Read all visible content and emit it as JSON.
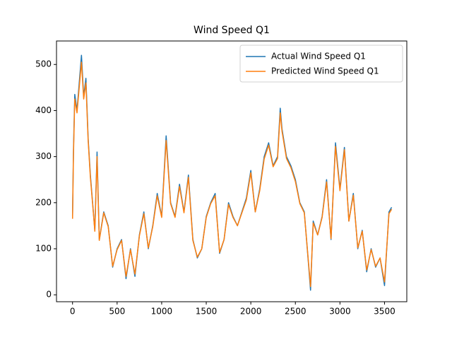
{
  "chart_data": {
    "type": "line",
    "title": "Wind Speed Q1",
    "x": [
      0,
      10,
      25,
      50,
      75,
      100,
      125,
      150,
      175,
      200,
      225,
      250,
      275,
      300,
      350,
      400,
      450,
      500,
      550,
      600,
      650,
      700,
      750,
      800,
      850,
      900,
      950,
      1000,
      1050,
      1100,
      1150,
      1200,
      1250,
      1300,
      1350,
      1400,
      1450,
      1500,
      1550,
      1600,
      1650,
      1700,
      1750,
      1800,
      1850,
      1900,
      1950,
      2000,
      2050,
      2100,
      2150,
      2200,
      2250,
      2300,
      2330,
      2350,
      2400,
      2450,
      2500,
      2550,
      2600,
      2650,
      2670,
      2700,
      2750,
      2800,
      2850,
      2900,
      2950,
      3000,
      3050,
      3100,
      3150,
      3200,
      3250,
      3300,
      3350,
      3400,
      3450,
      3500,
      3550,
      3580
    ],
    "series": [
      {
        "name": "Actual Wind Speed Q1",
        "color": "#1f77b4",
        "values": [
          170,
          310,
          435,
          400,
          460,
          520,
          430,
          470,
          340,
          260,
          200,
          140,
          310,
          120,
          180,
          150,
          60,
          100,
          120,
          35,
          100,
          40,
          130,
          180,
          100,
          150,
          220,
          170,
          345,
          200,
          170,
          240,
          180,
          260,
          120,
          80,
          100,
          170,
          200,
          220,
          90,
          120,
          200,
          170,
          150,
          180,
          210,
          270,
          180,
          230,
          300,
          330,
          280,
          300,
          405,
          360,
          300,
          280,
          250,
          200,
          180,
          60,
          10,
          160,
          130,
          170,
          250,
          120,
          330,
          230,
          320,
          160,
          220,
          100,
          140,
          50,
          100,
          60,
          80,
          20,
          180,
          190
        ]
      },
      {
        "name": "Predicted Wind Speed Q1",
        "color": "#ff7f0e",
        "values": [
          165,
          300,
          425,
          395,
          450,
          505,
          425,
          460,
          335,
          255,
          198,
          138,
          300,
          118,
          178,
          148,
          62,
          98,
          118,
          40,
          98,
          45,
          128,
          176,
          102,
          148,
          215,
          168,
          335,
          198,
          168,
          235,
          178,
          255,
          118,
          82,
          100,
          168,
          198,
          215,
          92,
          120,
          196,
          168,
          150,
          178,
          206,
          265,
          180,
          226,
          295,
          325,
          278,
          296,
          395,
          355,
          296,
          276,
          246,
          198,
          178,
          64,
          18,
          156,
          130,
          168,
          245,
          122,
          322,
          226,
          315,
          160,
          216,
          102,
          138,
          54,
          98,
          62,
          80,
          28,
          176,
          186
        ]
      }
    ],
    "xlim": [
      -180,
      3750
    ],
    "xticks": [
      0,
      500,
      1000,
      1500,
      2000,
      2500,
      3000,
      3500
    ],
    "ylim": [
      -15,
      551
    ],
    "yticks": [
      0,
      100,
      200,
      300,
      400,
      500
    ],
    "legend": "upper right"
  }
}
